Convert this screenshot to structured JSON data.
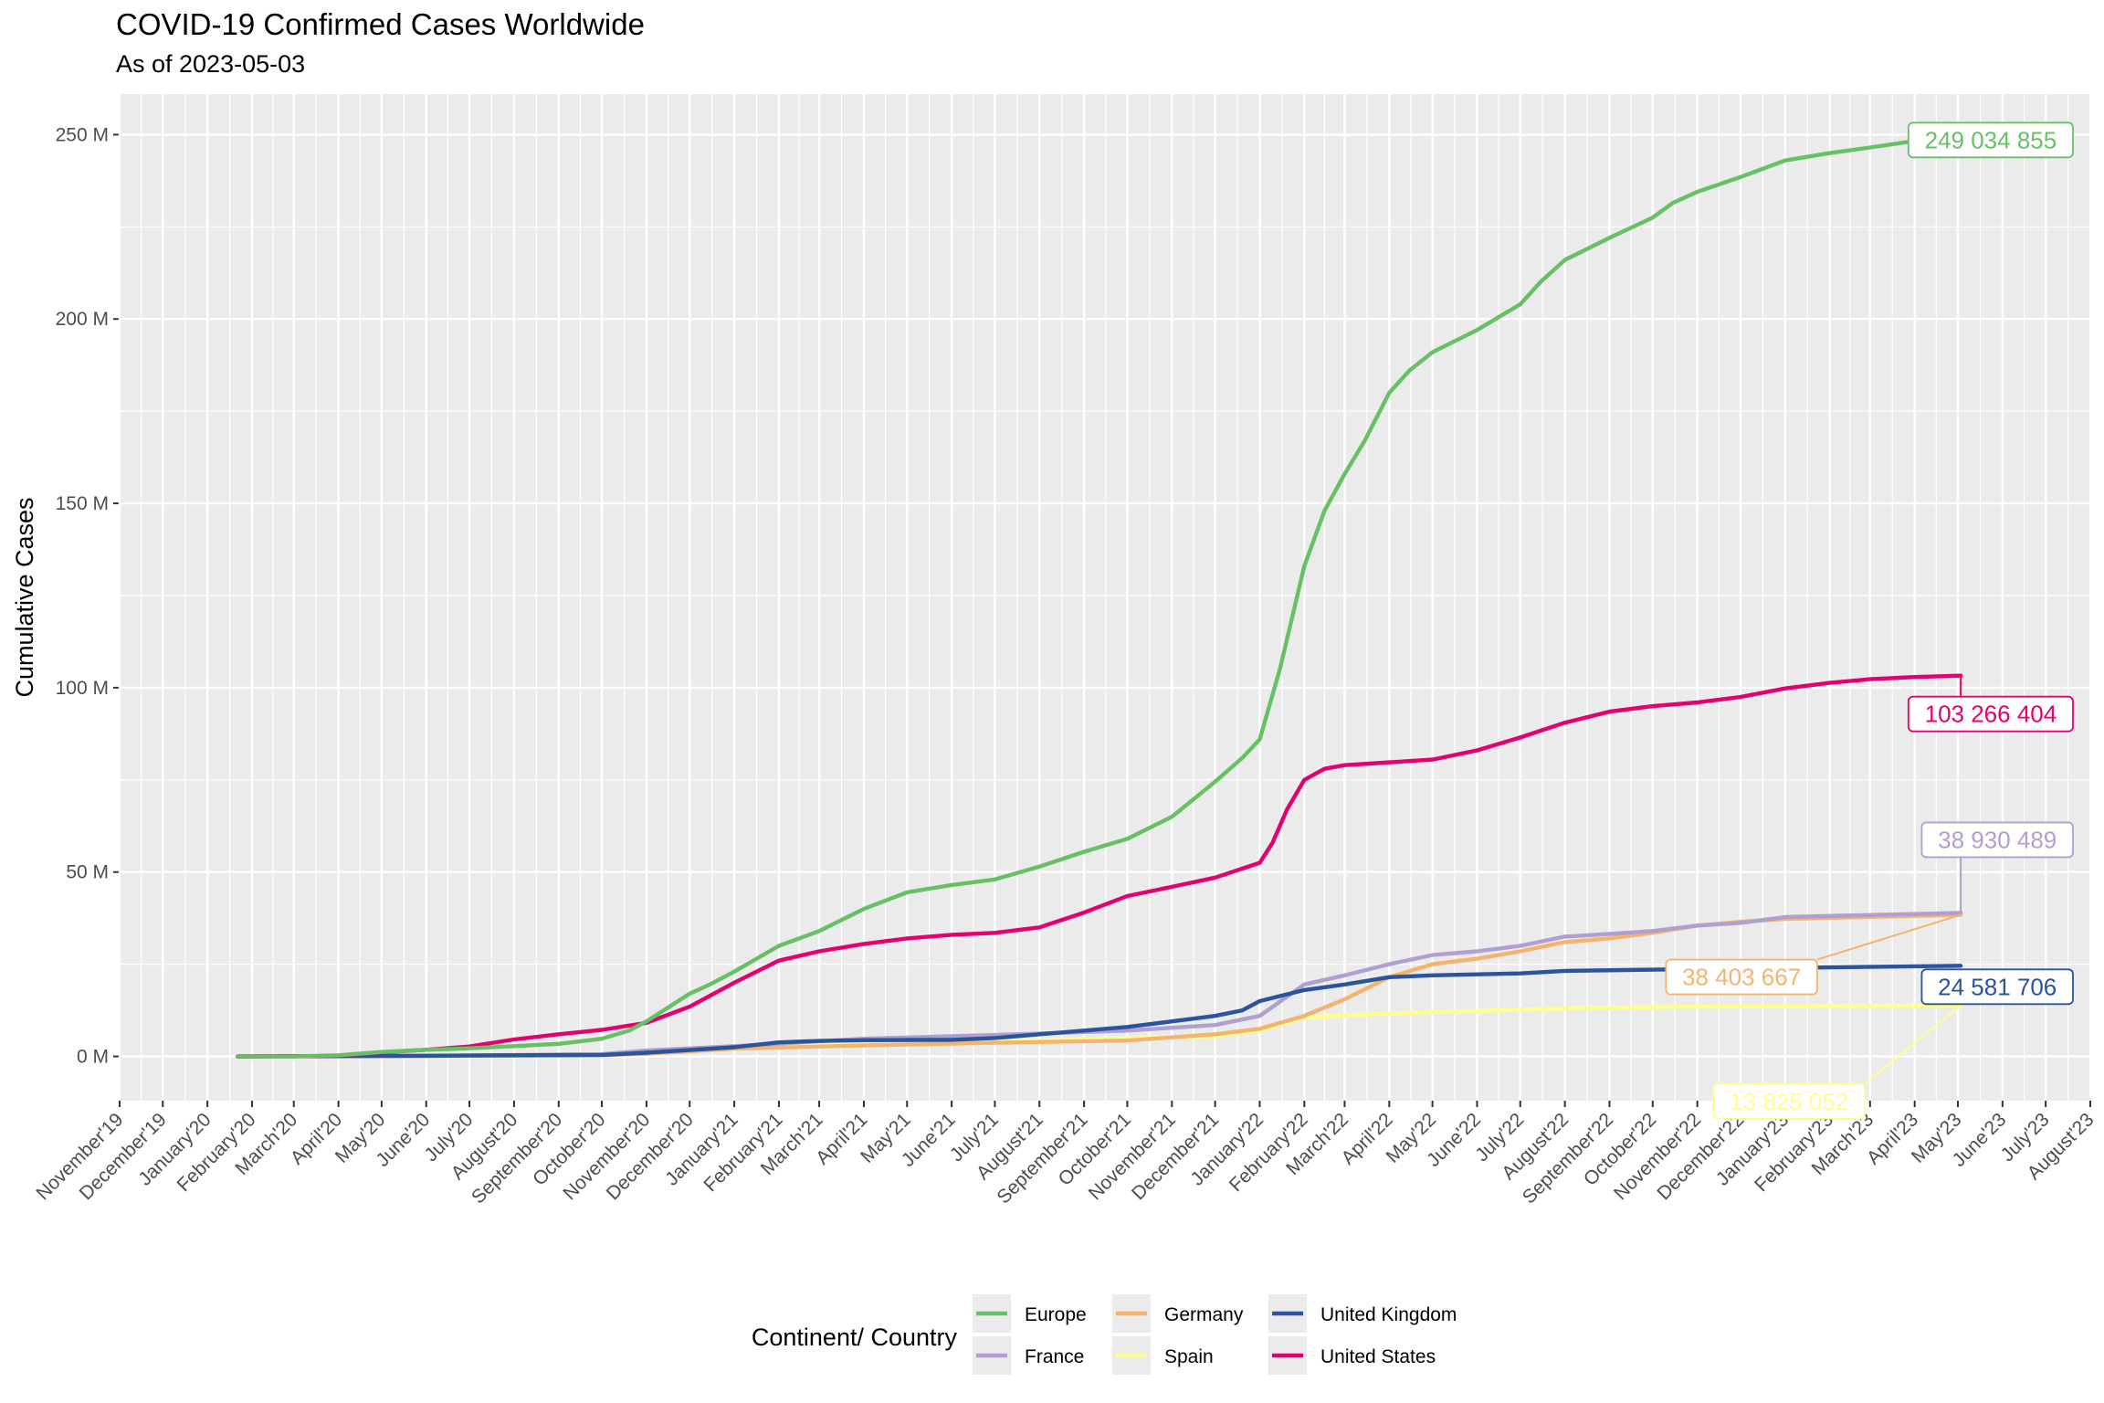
{
  "chart_data": {
    "type": "line",
    "title": "COVID-19 Confirmed Cases Worldwide",
    "subtitle": "As of 2023-05-03",
    "xlabel": "",
    "ylabel": "Cumulative Cases",
    "xlim": [
      "2019-11-01",
      "2023-08-01"
    ],
    "ylim": [
      -12000000,
      261000000
    ],
    "x_ticks": [
      "2019-11-01",
      "2019-12-01",
      "2020-01-01",
      "2020-02-01",
      "2020-03-01",
      "2020-04-01",
      "2020-05-01",
      "2020-06-01",
      "2020-07-01",
      "2020-08-01",
      "2020-09-01",
      "2020-10-01",
      "2020-11-01",
      "2020-12-01",
      "2021-01-01",
      "2021-02-01",
      "2021-03-01",
      "2021-04-01",
      "2021-05-01",
      "2021-06-01",
      "2021-07-01",
      "2021-08-01",
      "2021-09-01",
      "2021-10-01",
      "2021-11-01",
      "2021-12-01",
      "2022-01-01",
      "2022-02-01",
      "2022-03-01",
      "2022-04-01",
      "2022-05-01",
      "2022-06-01",
      "2022-07-01",
      "2022-08-01",
      "2022-09-01",
      "2022-10-01",
      "2022-11-01",
      "2022-12-01",
      "2023-01-01",
      "2023-02-01",
      "2023-03-01",
      "2023-04-01",
      "2023-05-01",
      "2023-06-01",
      "2023-07-01",
      "2023-08-01"
    ],
    "x_tick_labels": [
      "November'19",
      "December'19",
      "January'20",
      "February'20",
      "March'20",
      "April'20",
      "May'20",
      "June'20",
      "July'20",
      "August'20",
      "September'20",
      "October'20",
      "November'20",
      "December'20",
      "January'21",
      "February'21",
      "March'21",
      "April'21",
      "May'21",
      "June'21",
      "July'21",
      "August'21",
      "September'21",
      "October'21",
      "November'21",
      "December'21",
      "January'22",
      "February'22",
      "March'22",
      "April'22",
      "May'22",
      "June'22",
      "July'22",
      "August'22",
      "September'22",
      "October'22",
      "November'22",
      "December'22",
      "January'23",
      "February'23",
      "March'23",
      "April'23",
      "May'23",
      "June'23",
      "July'23",
      "August'23"
    ],
    "y_ticks": [
      0,
      50000000,
      100000000,
      150000000,
      200000000,
      250000000
    ],
    "y_tick_labels": [
      "0 M",
      "50 M",
      "100 M",
      "150 M",
      "200 M",
      "250 M"
    ],
    "grid": true,
    "legend": {
      "title": "Continent/ Country",
      "position": "bottom"
    },
    "series": [
      {
        "name": "Europe",
        "color": "#66c164",
        "end_label": "249 034 855",
        "points": [
          [
            "2020-01-22",
            0
          ],
          [
            "2020-03-01",
            0
          ],
          [
            "2020-04-01",
            300000
          ],
          [
            "2020-05-01",
            1200000
          ],
          [
            "2020-06-01",
            1800000
          ],
          [
            "2020-07-01",
            2200000
          ],
          [
            "2020-08-01",
            2800000
          ],
          [
            "2020-09-01",
            3400000
          ],
          [
            "2020-10-01",
            4800000
          ],
          [
            "2020-10-20",
            7000000
          ],
          [
            "2020-11-01",
            9500000
          ],
          [
            "2020-11-15",
            13000000
          ],
          [
            "2020-12-01",
            17000000
          ],
          [
            "2020-12-15",
            19500000
          ],
          [
            "2021-01-01",
            23000000
          ],
          [
            "2021-02-01",
            30000000
          ],
          [
            "2021-03-01",
            34000000
          ],
          [
            "2021-04-01",
            40000000
          ],
          [
            "2021-05-01",
            44500000
          ],
          [
            "2021-06-01",
            46500000
          ],
          [
            "2021-07-01",
            48000000
          ],
          [
            "2021-08-01",
            51500000
          ],
          [
            "2021-09-01",
            55500000
          ],
          [
            "2021-10-01",
            59000000
          ],
          [
            "2021-11-01",
            65000000
          ],
          [
            "2021-12-01",
            74500000
          ],
          [
            "2021-12-20",
            81000000
          ],
          [
            "2022-01-01",
            86000000
          ],
          [
            "2022-01-15",
            105000000
          ],
          [
            "2022-02-01",
            133000000
          ],
          [
            "2022-02-15",
            148000000
          ],
          [
            "2022-03-01",
            158000000
          ],
          [
            "2022-03-15",
            167000000
          ],
          [
            "2022-04-01",
            180000000
          ],
          [
            "2022-04-15",
            186000000
          ],
          [
            "2022-05-01",
            191000000
          ],
          [
            "2022-06-01",
            197000000
          ],
          [
            "2022-07-01",
            204000000
          ],
          [
            "2022-07-15",
            210000000
          ],
          [
            "2022-08-01",
            216000000
          ],
          [
            "2022-09-01",
            222000000
          ],
          [
            "2022-10-01",
            227500000
          ],
          [
            "2022-10-15",
            231500000
          ],
          [
            "2022-11-01",
            234500000
          ],
          [
            "2022-12-01",
            238500000
          ],
          [
            "2023-01-01",
            243000000
          ],
          [
            "2023-02-01",
            245000000
          ],
          [
            "2023-03-01",
            246500000
          ],
          [
            "2023-04-01",
            248300000
          ],
          [
            "2023-05-03",
            249034855
          ]
        ]
      },
      {
        "name": "France",
        "color": "#b09fd0",
        "end_label": "38 930 489",
        "points": [
          [
            "2020-01-22",
            0
          ],
          [
            "2020-06-01",
            150000
          ],
          [
            "2020-10-01",
            600000
          ],
          [
            "2020-11-01",
            1600000
          ],
          [
            "2021-01-01",
            2800000
          ],
          [
            "2021-04-01",
            4800000
          ],
          [
            "2021-07-01",
            5800000
          ],
          [
            "2021-10-01",
            7000000
          ],
          [
            "2021-12-01",
            8500000
          ],
          [
            "2022-01-01",
            11000000
          ],
          [
            "2022-02-01",
            19500000
          ],
          [
            "2022-03-01",
            22000000
          ],
          [
            "2022-04-01",
            25000000
          ],
          [
            "2022-05-01",
            27500000
          ],
          [
            "2022-06-01",
            28500000
          ],
          [
            "2022-07-01",
            30000000
          ],
          [
            "2022-08-01",
            32500000
          ],
          [
            "2022-09-01",
            33200000
          ],
          [
            "2022-10-01",
            34000000
          ],
          [
            "2022-11-01",
            35500000
          ],
          [
            "2022-12-01",
            36200000
          ],
          [
            "2023-01-01",
            37800000
          ],
          [
            "2023-05-03",
            38930489
          ]
        ]
      },
      {
        "name": "Germany",
        "color": "#f5b46d",
        "end_label": "38 403 667",
        "points": [
          [
            "2020-01-22",
            0
          ],
          [
            "2020-06-01",
            150000
          ],
          [
            "2020-10-01",
            300000
          ],
          [
            "2020-11-01",
            700000
          ],
          [
            "2021-01-01",
            2100000
          ],
          [
            "2021-04-01",
            3000000
          ],
          [
            "2021-07-01",
            3700000
          ],
          [
            "2021-10-01",
            4300000
          ],
          [
            "2021-12-01",
            6000000
          ],
          [
            "2022-01-01",
            7500000
          ],
          [
            "2022-02-01",
            11000000
          ],
          [
            "2022-03-01",
            15500000
          ],
          [
            "2022-04-01",
            21500000
          ],
          [
            "2022-05-01",
            25000000
          ],
          [
            "2022-06-01",
            26500000
          ],
          [
            "2022-07-01",
            28500000
          ],
          [
            "2022-08-01",
            31000000
          ],
          [
            "2022-09-01",
            32000000
          ],
          [
            "2022-10-01",
            33500000
          ],
          [
            "2022-11-01",
            35500000
          ],
          [
            "2022-12-01",
            36500000
          ],
          [
            "2023-01-01",
            37300000
          ],
          [
            "2023-05-03",
            38403667
          ]
        ]
      },
      {
        "name": "Spain",
        "color": "#ffff8f",
        "end_label": "13 825 052",
        "points": [
          [
            "2020-01-22",
            0
          ],
          [
            "2020-06-01",
            200000
          ],
          [
            "2020-10-01",
            600000
          ],
          [
            "2020-11-01",
            1200000
          ],
          [
            "2021-01-01",
            2000000
          ],
          [
            "2021-04-01",
            3300000
          ],
          [
            "2021-07-01",
            4000000
          ],
          [
            "2021-10-01",
            4900000
          ],
          [
            "2021-12-01",
            5500000
          ],
          [
            "2022-01-01",
            7000000
          ],
          [
            "2022-02-01",
            10500000
          ],
          [
            "2022-03-01",
            11200000
          ],
          [
            "2022-05-01",
            12000000
          ],
          [
            "2022-08-01",
            13000000
          ],
          [
            "2022-11-01",
            13500000
          ],
          [
            "2023-05-03",
            13825052
          ]
        ]
      },
      {
        "name": "United Kingdom",
        "color": "#2a549c",
        "end_label": "24 581 706",
        "points": [
          [
            "2020-01-22",
            0
          ],
          [
            "2020-06-01",
            200000
          ],
          [
            "2020-10-01",
            400000
          ],
          [
            "2020-11-01",
            1000000
          ],
          [
            "2021-01-01",
            2500000
          ],
          [
            "2021-02-01",
            3800000
          ],
          [
            "2021-03-01",
            4200000
          ],
          [
            "2021-04-01",
            4400000
          ],
          [
            "2021-06-01",
            4500000
          ],
          [
            "2021-07-01",
            5000000
          ],
          [
            "2021-08-01",
            6000000
          ],
          [
            "2021-09-01",
            7000000
          ],
          [
            "2021-10-01",
            8000000
          ],
          [
            "2021-11-01",
            9500000
          ],
          [
            "2021-12-01",
            11000000
          ],
          [
            "2021-12-20",
            12500000
          ],
          [
            "2022-01-01",
            15000000
          ],
          [
            "2022-02-01",
            18000000
          ],
          [
            "2022-03-01",
            19500000
          ],
          [
            "2022-04-01",
            21500000
          ],
          [
            "2022-05-01",
            22000000
          ],
          [
            "2022-07-01",
            22500000
          ],
          [
            "2022-08-01",
            23200000
          ],
          [
            "2022-11-01",
            23700000
          ],
          [
            "2023-05-03",
            24581706
          ]
        ]
      },
      {
        "name": "United States",
        "color": "#e5006e",
        "end_label": "103 266 404",
        "points": [
          [
            "2020-01-22",
            0
          ],
          [
            "2020-03-15",
            100000
          ],
          [
            "2020-04-01",
            200000
          ],
          [
            "2020-05-01",
            1100000
          ],
          [
            "2020-06-01",
            1800000
          ],
          [
            "2020-07-01",
            2700000
          ],
          [
            "2020-08-01",
            4600000
          ],
          [
            "2020-09-01",
            6000000
          ],
          [
            "2020-10-01",
            7200000
          ],
          [
            "2020-11-01",
            9100000
          ],
          [
            "2020-12-01",
            13500000
          ],
          [
            "2021-01-01",
            20000000
          ],
          [
            "2021-02-01",
            26000000
          ],
          [
            "2021-03-01",
            28500000
          ],
          [
            "2021-04-01",
            30500000
          ],
          [
            "2021-05-01",
            32000000
          ],
          [
            "2021-06-01",
            33000000
          ],
          [
            "2021-07-01",
            33500000
          ],
          [
            "2021-08-01",
            35000000
          ],
          [
            "2021-09-01",
            39000000
          ],
          [
            "2021-10-01",
            43500000
          ],
          [
            "2021-11-01",
            46000000
          ],
          [
            "2021-12-01",
            48500000
          ],
          [
            "2022-01-01",
            52500000
          ],
          [
            "2022-01-10",
            58000000
          ],
          [
            "2022-01-20",
            67000000
          ],
          [
            "2022-02-01",
            75000000
          ],
          [
            "2022-02-15",
            78000000
          ],
          [
            "2022-03-01",
            79000000
          ],
          [
            "2022-05-01",
            80500000
          ],
          [
            "2022-06-01",
            83000000
          ],
          [
            "2022-07-01",
            86500000
          ],
          [
            "2022-08-01",
            90500000
          ],
          [
            "2022-09-01",
            93500000
          ],
          [
            "2022-10-01",
            95000000
          ],
          [
            "2022-11-01",
            96000000
          ],
          [
            "2022-12-01",
            97500000
          ],
          [
            "2023-01-01",
            99800000
          ],
          [
            "2023-02-01",
            101300000
          ],
          [
            "2023-03-01",
            102300000
          ],
          [
            "2023-04-01",
            102900000
          ],
          [
            "2023-05-03",
            103266404
          ]
        ]
      }
    ]
  }
}
